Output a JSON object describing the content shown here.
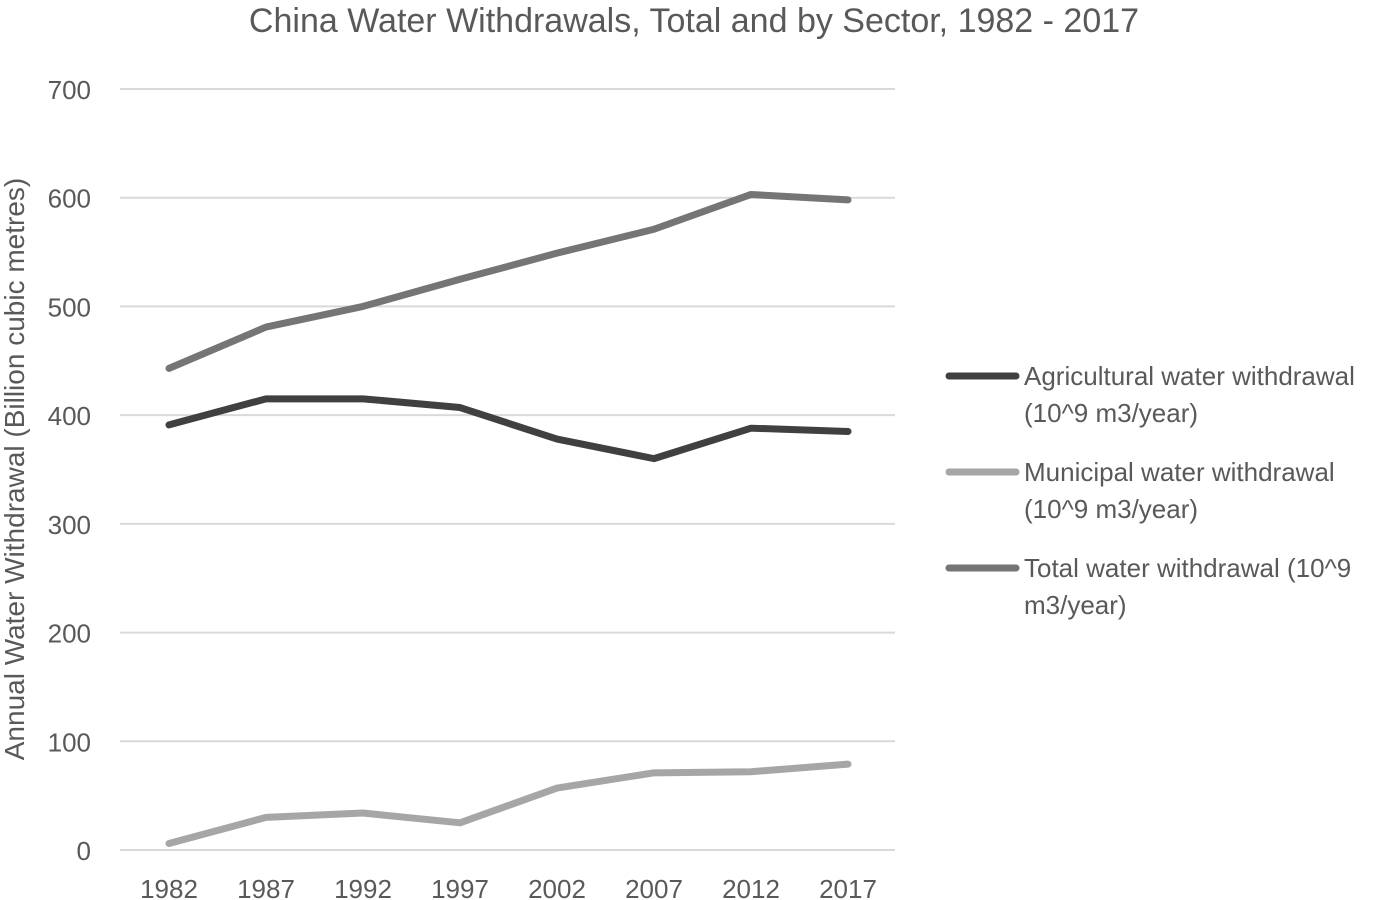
{
  "chart_data": {
    "type": "line",
    "title": "China Water Withdrawals, Total and by Sector, 1982 - 2017",
    "xlabel": "",
    "ylabel": "Annual Water Withdrawal (Billion cubic metres)",
    "categories": [
      "1982",
      "1987",
      "1992",
      "1997",
      "2002",
      "2007",
      "2012",
      "2017"
    ],
    "ylim": [
      0,
      700
    ],
    "yticks": [
      0,
      100,
      200,
      300,
      400,
      500,
      600,
      700
    ],
    "grid": true,
    "legend_position": "right",
    "series": [
      {
        "name": "Agricultural water withdrawal (10^9 m3/year)",
        "legend_lines": [
          "Agricultural water withdrawal",
          "(10^9 m3/year)"
        ],
        "color": "#404040",
        "values": [
          391,
          415,
          415,
          407,
          378,
          360,
          388,
          385
        ]
      },
      {
        "name": "Municipal water withdrawal (10^9 m3/year)",
        "legend_lines": [
          "Municipal water withdrawal",
          "(10^9 m3/year)"
        ],
        "color": "#a6a6a6",
        "values": [
          6,
          30,
          34,
          25,
          57,
          71,
          72,
          79
        ]
      },
      {
        "name": "Total water withdrawal (10^9 m3/year)",
        "legend_lines": [
          "Total water withdrawal (10^9",
          "m3/year)"
        ],
        "color": "#757575",
        "values": [
          443,
          481,
          500,
          525,
          549,
          571,
          603,
          598
        ]
      }
    ]
  }
}
